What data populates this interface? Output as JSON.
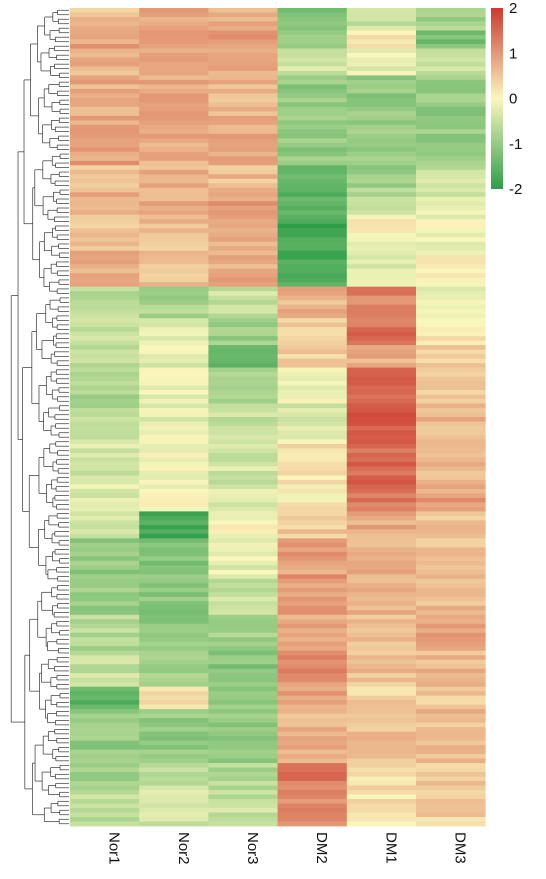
{
  "chart_data": {
    "type": "heatmap",
    "title": "",
    "columns": [
      "Nor1",
      "Nor2",
      "Nor3",
      "DM2",
      "DM1",
      "DM3"
    ],
    "value_range": [
      -2,
      2
    ],
    "color_scale": {
      "low": "#2e9e4a",
      "mid": "#fbf7bc",
      "high": "#cc3a2f",
      "ticks": [
        "2",
        "1",
        "0",
        "-1",
        "-2"
      ],
      "tick_values": [
        2,
        1,
        0,
        -1,
        -2
      ]
    },
    "row_dendrogram": true,
    "row_blocks": [
      {
        "rows": 5,
        "values": [
          0.6,
          0.8,
          0.7,
          -1.2,
          -0.5,
          -0.8
        ]
      },
      {
        "rows": 4,
        "values": [
          0.9,
          1.1,
          0.9,
          -0.9,
          0.2,
          -1.3
        ]
      },
      {
        "rows": 6,
        "values": [
          0.7,
          0.9,
          0.8,
          -0.4,
          -0.2,
          -0.5
        ]
      },
      {
        "rows": 12,
        "values": [
          0.8,
          0.8,
          0.7,
          -1.0,
          -1.0,
          -1.0
        ]
      },
      {
        "rows": 8,
        "values": [
          0.9,
          0.8,
          0.8,
          -1.0,
          -1.0,
          -1.0
        ]
      },
      {
        "rows": 5,
        "values": [
          0.6,
          0.7,
          0.6,
          -1.3,
          -0.9,
          -0.5
        ]
      },
      {
        "rows": 6,
        "values": [
          0.7,
          0.8,
          0.9,
          -1.6,
          -0.6,
          -0.3
        ]
      },
      {
        "rows": 8,
        "values": [
          0.5,
          0.6,
          0.7,
          -1.8,
          0.0,
          -0.1
        ]
      },
      {
        "rows": 8,
        "values": [
          0.7,
          0.6,
          0.8,
          -1.7,
          -0.3,
          0.1
        ]
      },
      {
        "rows": 7,
        "values": [
          -0.6,
          -0.8,
          -0.5,
          0.7,
          1.2,
          -0.1
        ]
      },
      {
        "rows": 6,
        "values": [
          -0.4,
          -0.3,
          -0.9,
          0.5,
          1.4,
          0.2
        ]
      },
      {
        "rows": 5,
        "values": [
          -0.6,
          -0.2,
          -1.6,
          0.4,
          0.8,
          0.4
        ]
      },
      {
        "rows": 8,
        "values": [
          -0.8,
          -0.1,
          -0.7,
          -0.1,
          1.6,
          0.5
        ]
      },
      {
        "rows": 8,
        "values": [
          -0.7,
          -0.2,
          -0.5,
          -0.4,
          1.6,
          0.7
        ]
      },
      {
        "rows": 10,
        "values": [
          -0.4,
          -0.1,
          -0.4,
          0.2,
          1.5,
          0.6
        ]
      },
      {
        "rows": 6,
        "values": [
          -0.3,
          0.0,
          -0.3,
          0.1,
          1.3,
          0.9
        ]
      },
      {
        "rows": 6,
        "values": [
          -0.5,
          -1.7,
          0.0,
          0.5,
          0.8,
          0.6
        ]
      },
      {
        "rows": 8,
        "values": [
          -1.0,
          -1.2,
          -0.2,
          0.9,
          0.7,
          0.5
        ]
      },
      {
        "rows": 9,
        "values": [
          -0.9,
          -1.1,
          -0.5,
          1.0,
          0.8,
          0.6
        ]
      },
      {
        "rows": 8,
        "values": [
          -0.7,
          -1.0,
          -0.8,
          0.8,
          0.5,
          0.9
        ]
      },
      {
        "rows": 8,
        "values": [
          -0.5,
          -0.8,
          -1.1,
          1.1,
          0.6,
          0.7
        ]
      },
      {
        "rows": 5,
        "values": [
          -1.6,
          0.3,
          -0.9,
          0.9,
          0.4,
          0.5
        ]
      },
      {
        "rows": 12,
        "values": [
          -1.0,
          -1.0,
          -1.0,
          0.7,
          0.6,
          0.6
        ]
      },
      {
        "rows": 6,
        "values": [
          -0.8,
          -0.6,
          -0.7,
          1.3,
          0.3,
          0.5
        ]
      },
      {
        "rows": 8,
        "values": [
          -0.6,
          -0.4,
          -0.5,
          1.2,
          0.2,
          0.4
        ]
      }
    ]
  }
}
